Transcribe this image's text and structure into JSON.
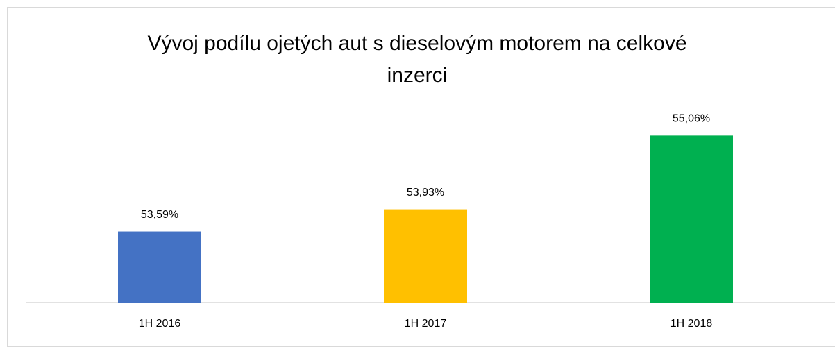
{
  "chart_data": {
    "type": "bar",
    "title": "Vývoj podílu ojetých aut s dieselovým motorem na celkové inzerci",
    "categories": [
      "1H 2016",
      "1H 2017",
      "1H 2018"
    ],
    "values": [
      53.59,
      53.93,
      55.06
    ],
    "value_labels": [
      "53,59%",
      "53,93%",
      "55,06%"
    ],
    "colors": [
      "#4472c4",
      "#ffc000",
      "#00b050"
    ],
    "ylim": [
      52.5,
      55.5
    ]
  }
}
